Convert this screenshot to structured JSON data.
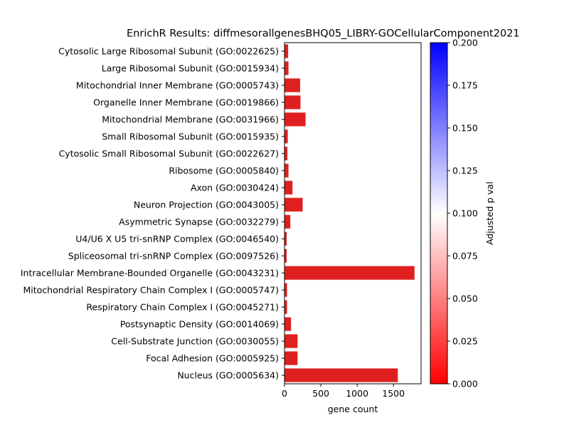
{
  "chart_data": {
    "type": "bar",
    "orientation": "horizontal",
    "title": "EnrichR Results: diffmesorallgenesBHQ05_LIBRY-GOCellularComponent2021",
    "xlabel": "gene count",
    "ylabel": "",
    "xlim": [
      0,
      1880
    ],
    "xticks": [
      0,
      500,
      1000,
      1500
    ],
    "grid": false,
    "categories": [
      "Cytosolic Large Ribosomal Subunit (GO:0022625)",
      "Large Ribosomal Subunit (GO:0015934)",
      "Mitochondrial Inner Membrane (GO:0005743)",
      "Organelle Inner Membrane (GO:0019866)",
      "Mitochondrial Membrane (GO:0031966)",
      "Small Ribosomal Subunit (GO:0015935)",
      "Cytosolic Small Ribosomal Subunit (GO:0022627)",
      "Ribosome (GO:0005840)",
      "Axon (GO:0030424)",
      "Neuron Projection (GO:0043005)",
      "Asymmetric Synapse (GO:0032279)",
      "U4/U6 X U5 tri-snRNP Complex (GO:0046540)",
      "Spliceosomal tri-snRNP Complex (GO:0097526)",
      "Intracellular Membrane-Bounded Organelle (GO:0043231)",
      "Mitochondrial Respiratory Chain Complex I (GO:0005747)",
      "Respiratory Chain Complex I (GO:0045271)",
      "Postsynaptic Density (GO:0014069)",
      "Cell-Substrate Junction (GO:0030055)",
      "Focal Adhesion (GO:0005925)",
      "Nucleus (GO:0005634)"
    ],
    "values": [
      50,
      55,
      215,
      220,
      290,
      45,
      40,
      55,
      110,
      250,
      80,
      30,
      30,
      1790,
      35,
      35,
      90,
      180,
      180,
      1560
    ],
    "bar_color": "#e02020",
    "colorbar": {
      "label": "Adjusted p val",
      "range": [
        0.0,
        0.2
      ],
      "ticks": [
        "0.000",
        "0.025",
        "0.050",
        "0.075",
        "0.100",
        "0.125",
        "0.150",
        "0.175",
        "0.200"
      ],
      "colormap": [
        "#ff0000",
        "#ffffff",
        "#0000ff"
      ]
    }
  }
}
